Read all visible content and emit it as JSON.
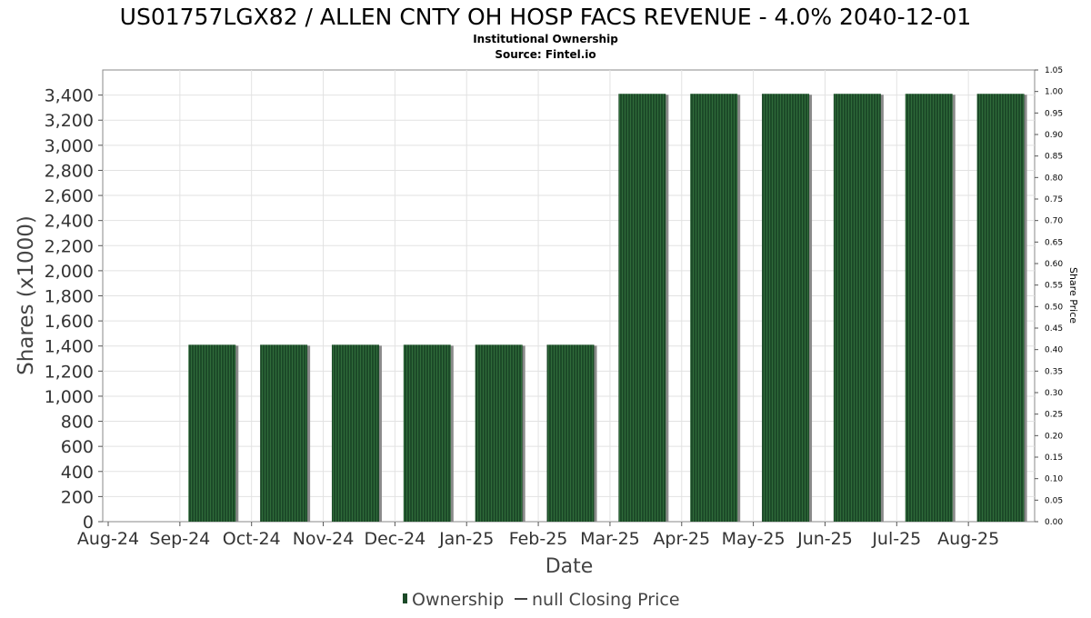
{
  "chart_data": {
    "type": "bar",
    "title": "US01757LGX82 / ALLEN CNTY OH HOSP FACS REVENUE - 4.0% 2040-12-01",
    "subtitle_line1": "Institutional Ownership",
    "subtitle_line2": "Source: Fintel.io",
    "xlabel": "Date",
    "ylabel": "Shares (x1000)",
    "y2label": "Share Price",
    "categories": [
      "Sep-24",
      "Oct-24",
      "Nov-24",
      "Dec-24",
      "Jan-25",
      "Feb-25",
      "Mar-25",
      "Apr-25",
      "May-25",
      "Jun-25",
      "Jul-25",
      "Aug-25"
    ],
    "x_tick_labels": [
      "Aug-24",
      "Sep-24",
      "Oct-24",
      "Nov-24",
      "Dec-24",
      "Jan-25",
      "Feb-25",
      "Mar-25",
      "Apr-25",
      "May-25",
      "Jun-25",
      "Jul-25",
      "Aug-25"
    ],
    "series": [
      {
        "name": "Ownership",
        "values": [
          1410,
          1410,
          1410,
          1410,
          1410,
          1410,
          3410,
          3410,
          3410,
          3410,
          3410,
          3410
        ]
      }
    ],
    "ylim": [
      0,
      3600
    ],
    "y_ticks": [
      "0",
      "200",
      "400",
      "600",
      "800",
      "1,000",
      "1,200",
      "1,400",
      "1,600",
      "1,800",
      "2,000",
      "2,200",
      "2,400",
      "2,600",
      "2,800",
      "3,000",
      "3,200",
      "3,400"
    ],
    "y2lim": [
      0,
      1.05
    ],
    "y2_ticks": [
      "0.00",
      "0.05",
      "0.10",
      "0.15",
      "0.20",
      "0.25",
      "0.30",
      "0.35",
      "0.40",
      "0.45",
      "0.50",
      "0.55",
      "0.60",
      "0.65",
      "0.70",
      "0.75",
      "0.80",
      "0.85",
      "0.90",
      "0.95",
      "1.00",
      "1.05"
    ],
    "grid": true,
    "legend": {
      "placement": "bottom-center",
      "items": [
        {
          "label": "Ownership",
          "marker": "bar"
        },
        {
          "label": "null Closing Price",
          "marker": "line"
        }
      ]
    },
    "colors": {
      "bar": "#1c4a28",
      "bar_stripe": "#2f6b3a",
      "bar_shadow": "#8a8a8a",
      "grid": "#e2e2e2",
      "axis": "#888888",
      "text": "#333333"
    }
  }
}
